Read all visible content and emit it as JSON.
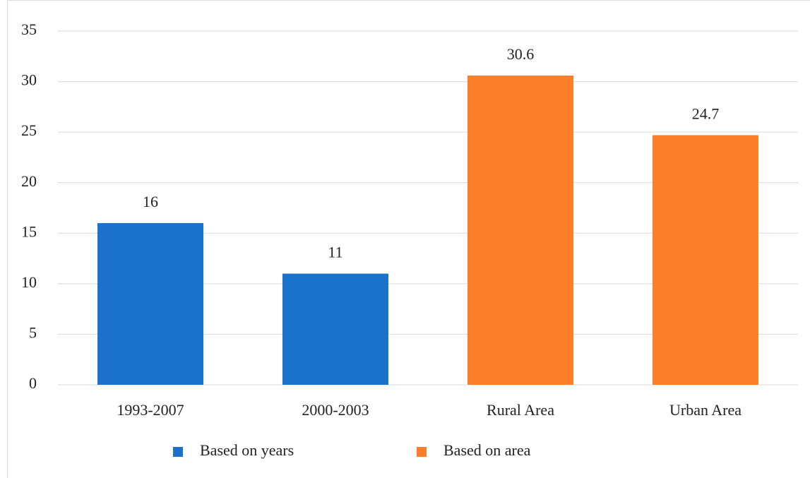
{
  "chart_data": {
    "type": "bar",
    "categories": [
      "1993-2007",
      "2000-2003",
      "Rural Area",
      "Urban Area"
    ],
    "series": [
      {
        "name": "Based on years",
        "color": "#1a72cb",
        "values": [
          16,
          11,
          null,
          null
        ]
      },
      {
        "name": "Based on area",
        "color": "#fd7f2a",
        "values": [
          null,
          null,
          30.6,
          24.7
        ]
      }
    ],
    "ylim": [
      0,
      35
    ],
    "yticks": [
      0,
      5,
      10,
      15,
      20,
      25,
      30,
      35
    ],
    "grid": true,
    "legend": "bottom"
  }
}
